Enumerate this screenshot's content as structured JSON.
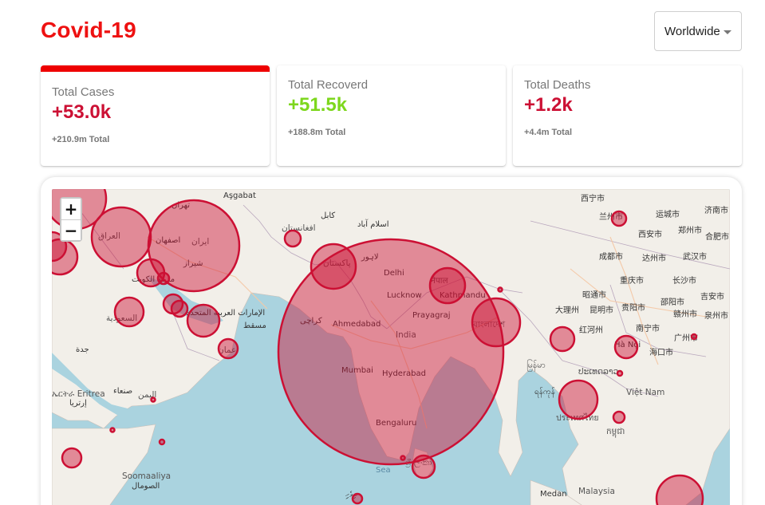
{
  "header": {
    "title": "Covid-19"
  },
  "region_select": {
    "selected": "Worldwide"
  },
  "stats": [
    {
      "label": "Total Cases",
      "value": "+53.0k",
      "total": "+210.9m Total"
    },
    {
      "label": "Total Recoverd",
      "value": "+51.5k",
      "total": "+188.8m Total"
    },
    {
      "label": "Total Deaths",
      "value": "+1.2k",
      "total": "+4.4m Total"
    }
  ],
  "map": {
    "zoom_in": "+",
    "zoom_out": "−",
    "circle_color": "#cc1034",
    "labels": {
      "asgabat": "Aşgabat",
      "tehran": "تهران",
      "kabul": "کابل",
      "islamabad": "اسلام آباد",
      "afghanistan": "افغانستان",
      "iraq": "العراق",
      "isfahan": "اصفهان",
      "iran": "ایران",
      "shiraz": "شیراز",
      "kuwait": "مدينة الكويت",
      "pakistan": "پاکستان",
      "lahore": "لاہور",
      "delhi": "Delhi",
      "nepal": "नेपाल",
      "lucknow": "Lucknow",
      "kathmandu": "Kathmandu",
      "karachi": "کراچی",
      "ahmedabad": "Ahmedabad",
      "prayagraj": "Prayagraj",
      "bangladesh": "বাংলাদেশ",
      "india": "India",
      "saudi": "السعودية",
      "uae": "الإمارات العربية المتحدة",
      "muscat": "مسقط",
      "oman": "عمان",
      "jeddah": "جدة",
      "mumbai": "Mumbai",
      "hyderabad": "Hyderabad",
      "eritrea": "ኤርትራ Eritrea",
      "eritrea2": "إرتريا",
      "sanaa": "صنعاء",
      "yemen": "اليمن",
      "bengaluru": "Bengaluru",
      "srilanka": "ශ්‍රී ලංකා",
      "sea": "Sea",
      "somalia": "Soomaaliya",
      "somalia2": "الصومال",
      "maldives": "ދިވެހި",
      "xining": "西宁市",
      "lanzhou": "兰州市",
      "yuncheng": "运城市",
      "jinan": "济南市",
      "xian": "西安市",
      "zhengzhou": "郑州市",
      "hefei": "合肥市",
      "chengdu": "成都市",
      "dazhou": "达州市",
      "wuhan": "武汉市",
      "chongqing": "重庆市",
      "changsha": "长沙市",
      "zhaotong": "昭通市",
      "shaoyang": "邵阳市",
      "jian": "吉安市",
      "dali": "大理州",
      "kunming": "昆明市",
      "guiyang": "贵阳市",
      "ganzhou": "赣州市",
      "quanzhou": "泉州市",
      "honghe": "红河州",
      "nanning": "南宁市",
      "guangzhou": "广州市",
      "hanoi": "Hà Nội",
      "haikou": "海口市",
      "myanmar": "မြန်မာ",
      "laos": "ປະເທດລາວ",
      "yangon": "ရန်ကုန်",
      "vietnam": "Việt Nam",
      "thailand": "ประเทศไทย",
      "cambodia": "កម្ពុជា",
      "malaysia": "Malaysia",
      "medan": "Medan"
    }
  }
}
